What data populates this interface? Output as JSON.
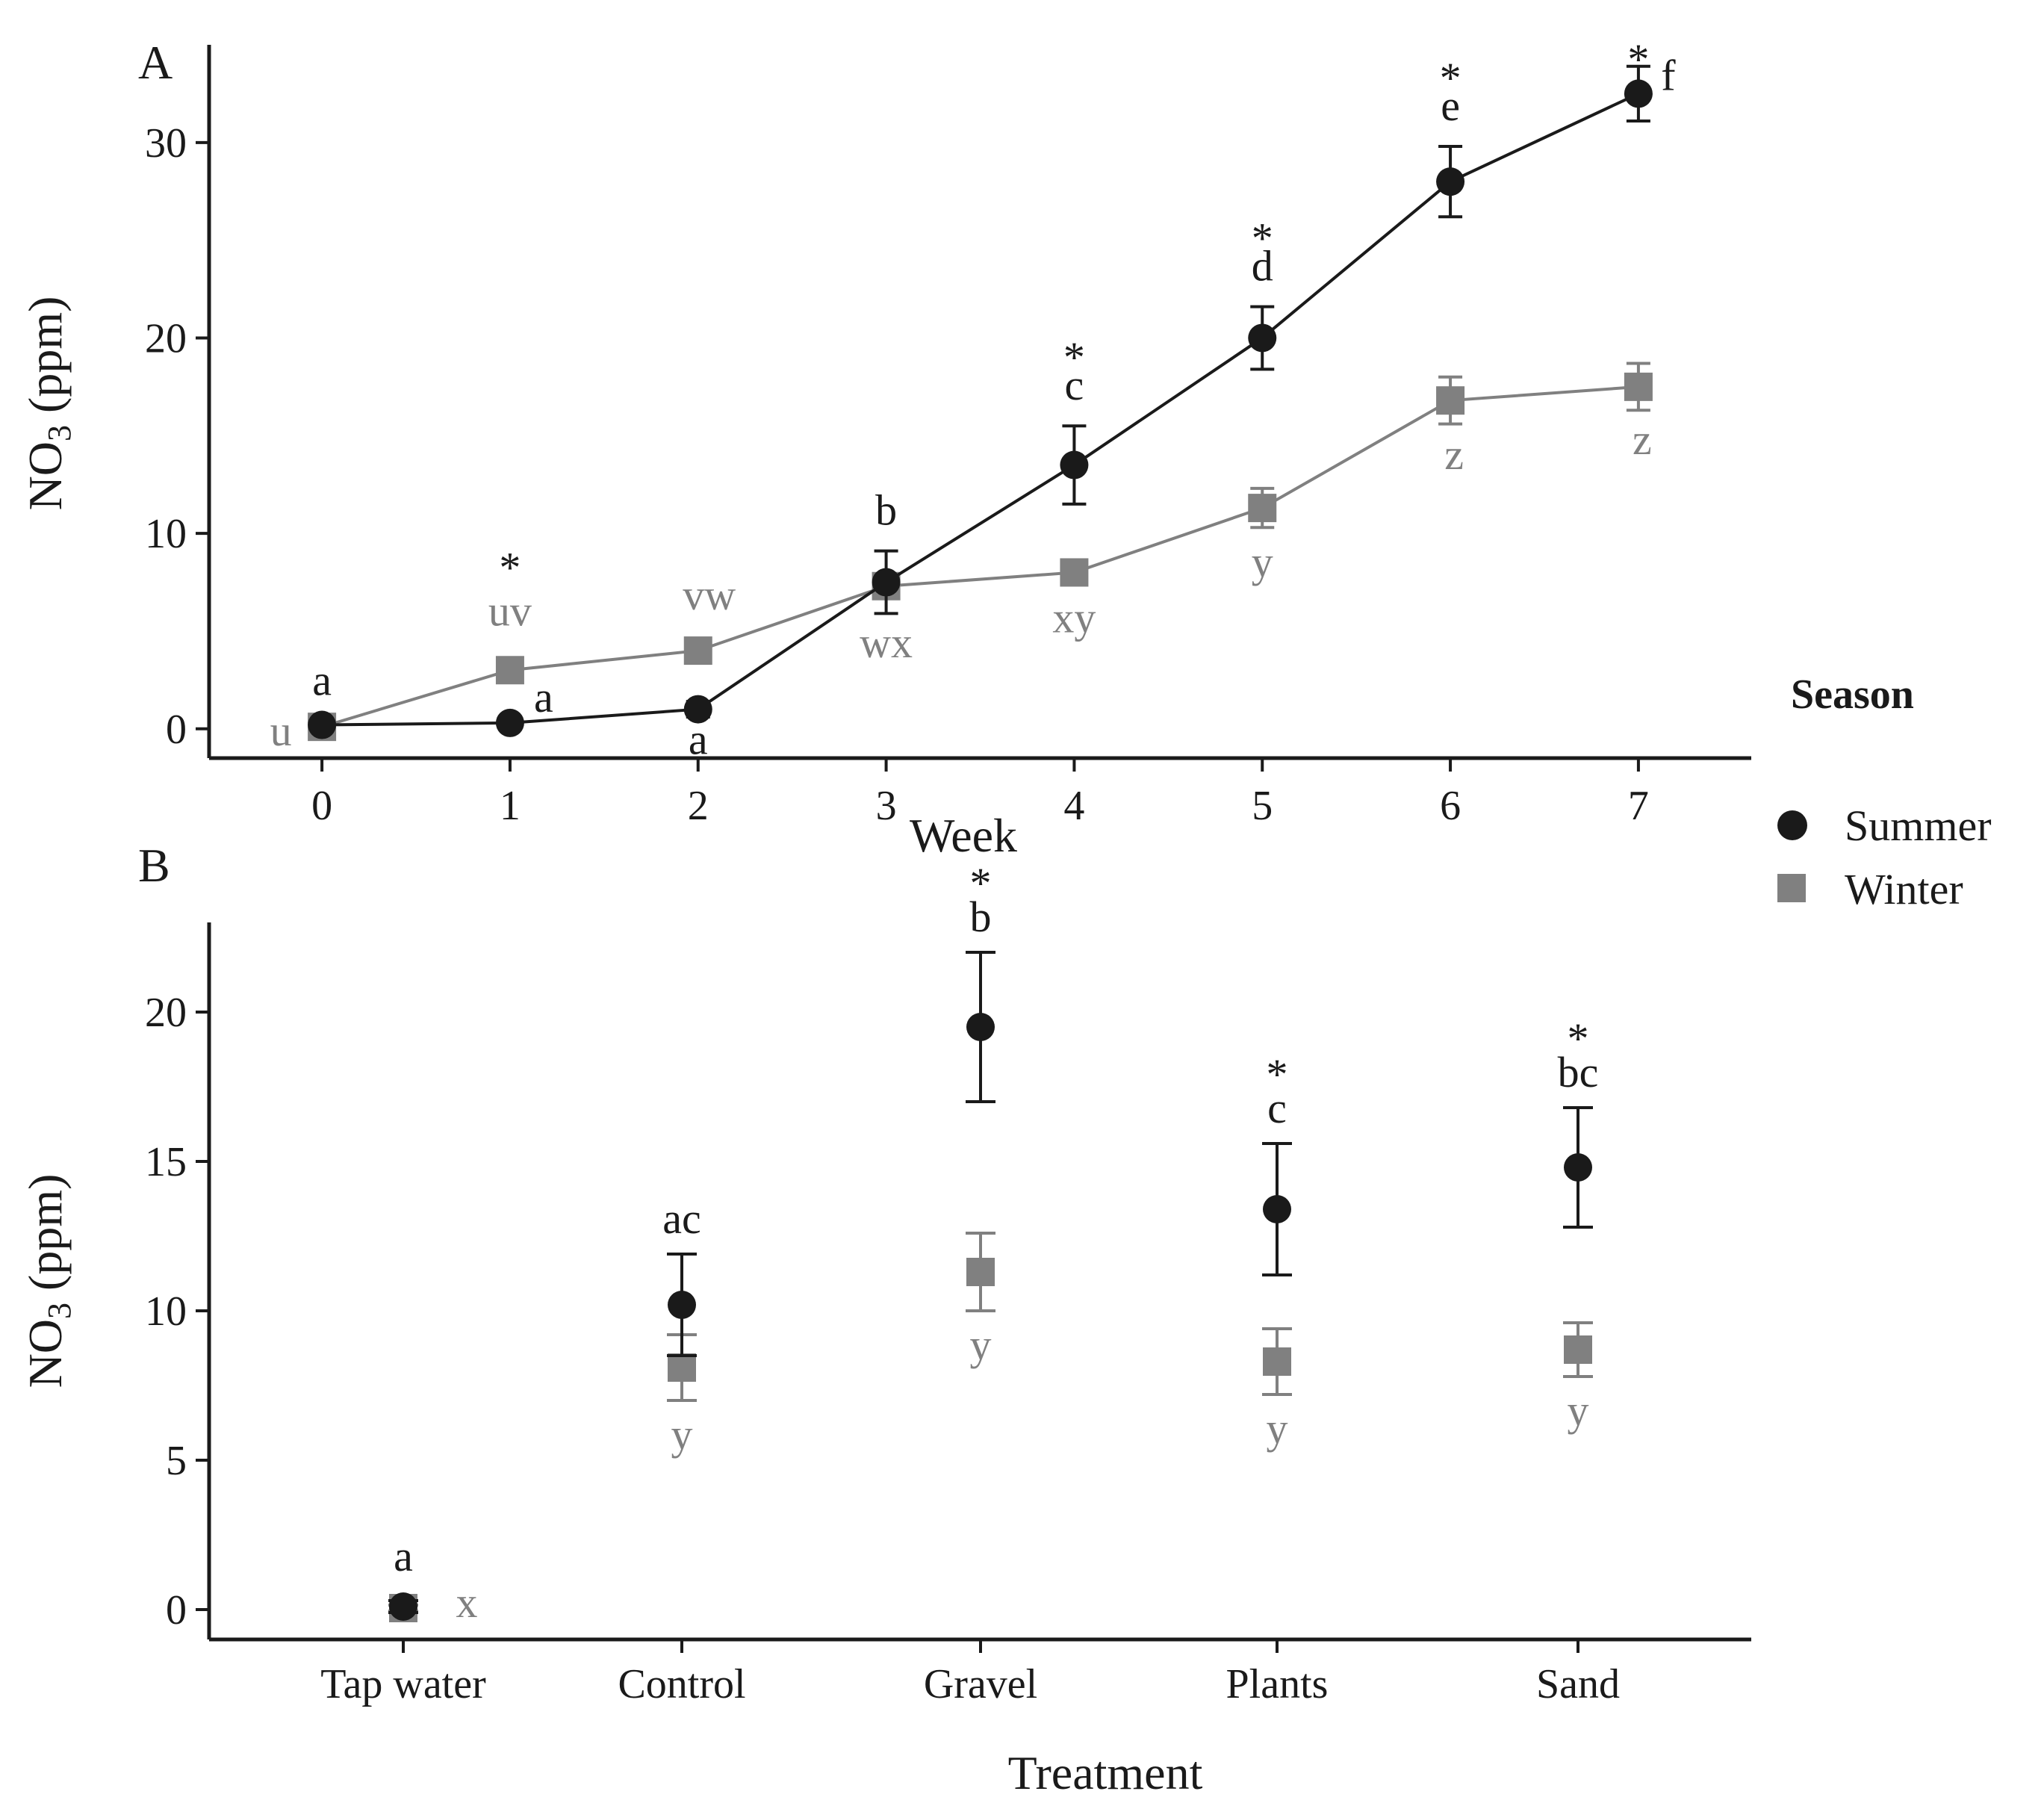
{
  "legend": {
    "title": "Season",
    "items": [
      {
        "label": "Summer",
        "color": "#1a1a1a",
        "marker": "circle"
      },
      {
        "label": "Winter",
        "color": "#808080",
        "marker": "square"
      }
    ]
  },
  "chart_data": [
    {
      "type": "line",
      "panel": "A",
      "xlabel": "Week",
      "ylabel": "NO3 (ppm)",
      "ylabel_main": "NO",
      "ylabel_sub": "3",
      "ylabel_rest": " (ppm)",
      "x": [
        0,
        1,
        2,
        3,
        4,
        5,
        6,
        7
      ],
      "xticks": [
        "0",
        "1",
        "2",
        "3",
        "4",
        "5",
        "6",
        "7"
      ],
      "yticks": [
        "0",
        "10",
        "20",
        "30"
      ],
      "ylim": [
        -1.5,
        35
      ],
      "xlim": [
        -0.6,
        7.6
      ],
      "series": [
        {
          "name": "Summer",
          "values": [
            0.2,
            0.3,
            1.0,
            7.5,
            13.5,
            20.0,
            28.0,
            32.5
          ],
          "errors": [
            0.2,
            0.3,
            0.4,
            1.6,
            2.0,
            1.6,
            1.8,
            1.4
          ],
          "letters": [
            "a",
            "a",
            "a",
            "b",
            "c",
            "d",
            "e",
            "f"
          ],
          "stars": [
            "",
            "",
            "",
            "",
            "*",
            "*",
            "*",
            "*"
          ]
        },
        {
          "name": "Winter",
          "values": [
            0.1,
            3.0,
            4.0,
            7.3,
            8.0,
            11.3,
            16.8,
            17.5
          ],
          "errors": [
            0.1,
            0.4,
            0.4,
            0.6,
            0.6,
            1.0,
            1.2,
            1.2
          ],
          "letters": [
            "u",
            "uv",
            "vw",
            "wx",
            "xy",
            "y",
            "z",
            "z"
          ],
          "stars": [
            "",
            "*",
            "",
            "",
            "",
            "",
            "",
            ""
          ]
        }
      ]
    },
    {
      "type": "scatter",
      "panel": "B",
      "xlabel": "Treatment",
      "ylabel": "NO3 (ppm)",
      "ylabel_main": "NO",
      "ylabel_sub": "3",
      "ylabel_rest": " (ppm)",
      "categories": [
        "Tap water",
        "Control",
        "Gravel",
        "Plants",
        "Sand"
      ],
      "yticks": [
        "0",
        "5",
        "10",
        "15",
        "20"
      ],
      "ylim": [
        -1,
        23
      ],
      "series": [
        {
          "name": "Summer",
          "values": [
            0.1,
            10.2,
            19.5,
            13.4,
            14.8
          ],
          "errors": [
            0.2,
            1.7,
            2.5,
            2.2,
            2.0
          ],
          "letters": [
            "a",
            "ac",
            "b",
            "c",
            "bc"
          ],
          "stars": [
            "",
            "",
            "*",
            "*",
            "*"
          ]
        },
        {
          "name": "Winter",
          "values": [
            0.05,
            8.1,
            11.3,
            8.3,
            8.7
          ],
          "errors": [
            0.1,
            1.1,
            1.3,
            1.1,
            0.9
          ],
          "letters": [
            "x",
            "y",
            "y",
            "y",
            "y"
          ],
          "stars": [
            "",
            "",
            "",
            "",
            ""
          ]
        }
      ]
    }
  ]
}
